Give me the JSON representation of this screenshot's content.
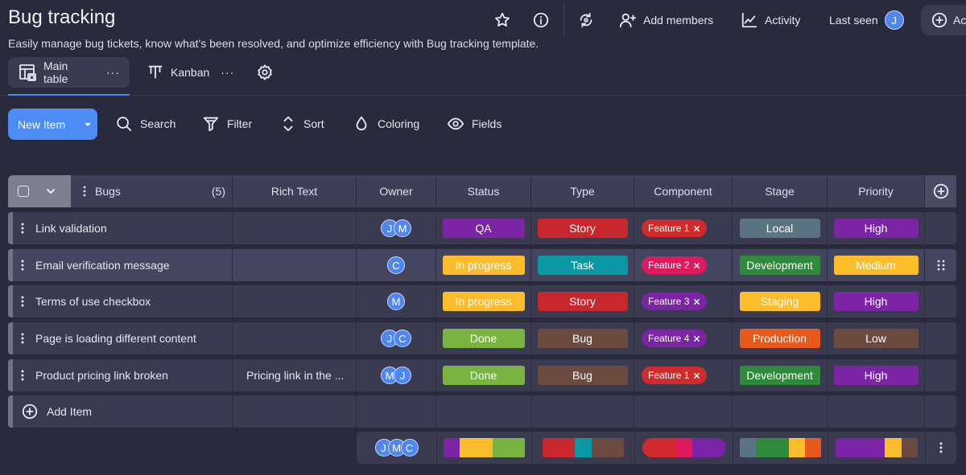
{
  "header": {
    "title": "Bug tracking",
    "subtitle": "Easily manage bug tickets, know what's been resolved, and optimize efficiency with Bug tracking template.",
    "add_members": "Add members",
    "activity": "Activity",
    "last_seen": "Last seen",
    "last_seen_avatar": "J",
    "add_pill_label": "Ac"
  },
  "tabs": [
    {
      "label": "Main table",
      "icon": "table-icon"
    },
    {
      "label": "Kanban",
      "icon": "kanban-icon"
    }
  ],
  "toolbar": {
    "new_item": "New Item",
    "search": "Search",
    "filter": "Filter",
    "sort": "Sort",
    "coloring": "Coloring",
    "fields": "Fields"
  },
  "table": {
    "columns": {
      "bugs": "Bugs",
      "count": "(5)",
      "rich_text": "Rich Text",
      "owner": "Owner",
      "status": "Status",
      "type": "Type",
      "component": "Component",
      "stage": "Stage",
      "priority": "Priority"
    },
    "rows": [
      {
        "name": "Link validation",
        "rich": "",
        "owners": [
          "J",
          "M"
        ],
        "status": "QA",
        "type": "Story",
        "component": "Feature 1",
        "stage": "Local",
        "priority": "High"
      },
      {
        "name": "Email verification message",
        "rich": "",
        "owners": [
          "C"
        ],
        "status": "In progress",
        "type": "Task",
        "component": "Feature 2",
        "stage": "Development",
        "priority": "Medium"
      },
      {
        "name": "Terms of use checkbox",
        "rich": "",
        "owners": [
          "M"
        ],
        "status": "In progress",
        "type": "Story",
        "component": "Feature 3",
        "stage": "Staging",
        "priority": "High"
      },
      {
        "name": "Page is loading different content",
        "rich": "",
        "owners": [
          "J",
          "C"
        ],
        "status": "Done",
        "type": "Bug",
        "component": "Feature 4",
        "stage": "Production",
        "priority": "Low"
      },
      {
        "name": "Product pricing link broken",
        "rich": "Pricing link in the ...",
        "owners": [
          "M",
          "J"
        ],
        "status": "Done",
        "type": "Bug",
        "component": "Feature 1",
        "stage": "Development",
        "priority": "High"
      }
    ],
    "add_item": "Add Item",
    "footer_owners": [
      "J",
      "M",
      "C"
    ]
  },
  "colors": {
    "status": {
      "QA": "#7b24a6",
      "In progress": "#fdbc2c",
      "Done": "#79b341"
    },
    "type": {
      "Story": "#c8272d",
      "Task": "#0c97a4",
      "Bug": "#6b4b40"
    },
    "component": {
      "Feature 1": "#d12a2c",
      "Feature 2": "#e0195f",
      "Feature 3": "#7b24a6",
      "Feature 4": "#7b24a6"
    },
    "stage": {
      "Local": "#5b7481",
      "Development": "#2f8a3b",
      "Staging": "#fdbc2c",
      "Production": "#e85a1b"
    },
    "priority": {
      "High": "#7b24a6",
      "Medium": "#fdbc2c",
      "Low": "#6b4b40"
    },
    "accent": "#4d8bf5"
  },
  "summary": {
    "status": [
      {
        "label": "QA",
        "share": 0.2
      },
      {
        "label": "In progress",
        "share": 0.4
      },
      {
        "label": "Done",
        "share": 0.4
      }
    ],
    "type": [
      {
        "label": "Story",
        "share": 0.4
      },
      {
        "label": "Task",
        "share": 0.2
      },
      {
        "label": "Bug",
        "share": 0.4
      }
    ],
    "component": [
      {
        "label": "Feature 1",
        "share": 0.4
      },
      {
        "label": "Feature 2",
        "share": 0.2
      },
      {
        "label": "Feature 3",
        "share": 0.2
      },
      {
        "label": "Feature 4",
        "share": 0.2
      }
    ],
    "stage": [
      {
        "label": "Local",
        "share": 0.2
      },
      {
        "label": "Development",
        "share": 0.4
      },
      {
        "label": "Staging",
        "share": 0.2
      },
      {
        "label": "Production",
        "share": 0.2
      }
    ],
    "priority": [
      {
        "label": "High",
        "share": 0.6
      },
      {
        "label": "Medium",
        "share": 0.2
      },
      {
        "label": "Low",
        "share": 0.2
      }
    ]
  }
}
